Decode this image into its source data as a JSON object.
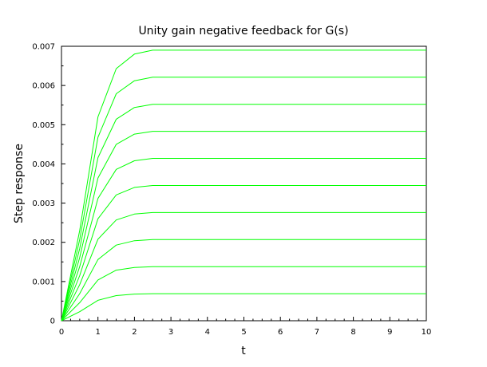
{
  "chart_data": {
    "type": "line",
    "title": "Unity gain negative feedback for G(s)",
    "xlabel": "t",
    "ylabel": "Step response",
    "xlim": [
      0,
      10
    ],
    "ylim": [
      0,
      0.007
    ],
    "x_ticks": [
      "0",
      "1",
      "2",
      "3",
      "4",
      "5",
      "6",
      "7",
      "8",
      "9",
      "10"
    ],
    "y_ticks": [
      "0",
      "0.001",
      "0.002",
      "0.003",
      "0.004",
      "0.005",
      "0.006",
      "0.007"
    ],
    "grid": false,
    "line_color": "#00ff00",
    "series": [
      {
        "final_value": 0.00069,
        "x": [
          0,
          0.5,
          1,
          1.5,
          2,
          2.5,
          3,
          4,
          5,
          6,
          7,
          8,
          9,
          10
        ],
        "values": [
          0,
          0.00023,
          0.00052,
          0.00064,
          0.00068,
          0.00069,
          0.00069,
          0.00069,
          0.00069,
          0.00069,
          0.00069,
          0.00069,
          0.00069,
          0.00069
        ]
      },
      {
        "final_value": 0.00138,
        "x": [
          0,
          0.5,
          1,
          1.5,
          2,
          2.5,
          3,
          4,
          5,
          6,
          7,
          8,
          9,
          10
        ],
        "values": [
          0,
          0.00046,
          0.00104,
          0.00129,
          0.00136,
          0.00138,
          0.00138,
          0.00138,
          0.00138,
          0.00138,
          0.00138,
          0.00138,
          0.00138,
          0.00138
        ]
      },
      {
        "final_value": 0.00207,
        "x": [
          0,
          0.5,
          1,
          1.5,
          2,
          2.5,
          3,
          4,
          5,
          6,
          7,
          8,
          9,
          10
        ],
        "values": [
          0,
          0.00069,
          0.00156,
          0.00193,
          0.00204,
          0.00207,
          0.00207,
          0.00207,
          0.00207,
          0.00207,
          0.00207,
          0.00207,
          0.00207,
          0.00207
        ]
      },
      {
        "final_value": 0.00276,
        "x": [
          0,
          0.5,
          1,
          1.5,
          2,
          2.5,
          3,
          4,
          5,
          6,
          7,
          8,
          9,
          10
        ],
        "values": [
          0,
          0.00092,
          0.00208,
          0.00257,
          0.00272,
          0.00276,
          0.00276,
          0.00276,
          0.00276,
          0.00276,
          0.00276,
          0.00276,
          0.00276,
          0.00276
        ]
      },
      {
        "final_value": 0.00345,
        "x": [
          0,
          0.5,
          1,
          1.5,
          2,
          2.5,
          3,
          4,
          5,
          6,
          7,
          8,
          9,
          10
        ],
        "values": [
          0,
          0.00115,
          0.0026,
          0.00321,
          0.0034,
          0.00345,
          0.00345,
          0.00345,
          0.00345,
          0.00345,
          0.00345,
          0.00345,
          0.00345,
          0.00345
        ]
      },
      {
        "final_value": 0.00414,
        "x": [
          0,
          0.5,
          1,
          1.5,
          2,
          2.5,
          3,
          4,
          5,
          6,
          7,
          8,
          9,
          10
        ],
        "values": [
          0,
          0.00138,
          0.00312,
          0.00386,
          0.00408,
          0.00414,
          0.00414,
          0.00414,
          0.00414,
          0.00414,
          0.00414,
          0.00414,
          0.00414,
          0.00414
        ]
      },
      {
        "final_value": 0.00483,
        "x": [
          0,
          0.5,
          1,
          1.5,
          2,
          2.5,
          3,
          4,
          5,
          6,
          7,
          8,
          9,
          10
        ],
        "values": [
          0,
          0.00161,
          0.00364,
          0.0045,
          0.00476,
          0.00483,
          0.00483,
          0.00483,
          0.00483,
          0.00483,
          0.00483,
          0.00483,
          0.00483,
          0.00483
        ]
      },
      {
        "final_value": 0.00552,
        "x": [
          0,
          0.5,
          1,
          1.5,
          2,
          2.5,
          3,
          4,
          5,
          6,
          7,
          8,
          9,
          10
        ],
        "values": [
          0,
          0.00184,
          0.00416,
          0.00514,
          0.00544,
          0.00552,
          0.00552,
          0.00552,
          0.00552,
          0.00552,
          0.00552,
          0.00552,
          0.00552,
          0.00552
        ]
      },
      {
        "final_value": 0.00621,
        "x": [
          0,
          0.5,
          1,
          1.5,
          2,
          2.5,
          3,
          4,
          5,
          6,
          7,
          8,
          9,
          10
        ],
        "values": [
          0,
          0.00207,
          0.00468,
          0.00579,
          0.00612,
          0.00621,
          0.00621,
          0.00621,
          0.00621,
          0.00621,
          0.00621,
          0.00621,
          0.00621,
          0.00621
        ]
      },
      {
        "final_value": 0.0069,
        "x": [
          0,
          0.5,
          1,
          1.5,
          2,
          2.5,
          3,
          4,
          5,
          6,
          7,
          8,
          9,
          10
        ],
        "values": [
          0,
          0.0023,
          0.0052,
          0.00643,
          0.0068,
          0.0069,
          0.0069,
          0.0069,
          0.0069,
          0.0069,
          0.0069,
          0.0069,
          0.0069,
          0.0069
        ]
      }
    ]
  }
}
